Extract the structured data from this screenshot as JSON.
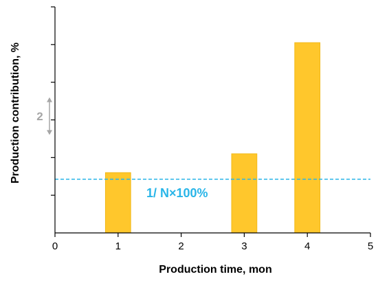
{
  "chart_data": {
    "type": "bar",
    "xlabel": "Production time, mon",
    "ylabel": "Production contribution, %",
    "xlim": [
      0,
      5
    ],
    "ylim": [
      0,
      12
    ],
    "x_ticks": [
      "0",
      "1",
      "2",
      "3",
      "4",
      "5"
    ],
    "y_tick_count": 6,
    "y_tick_step": 2,
    "y_labels_shown": false,
    "bars": [
      {
        "x": 1,
        "value": 3.2
      },
      {
        "x": 3,
        "value": 4.2
      },
      {
        "x": 4,
        "value": 10.1
      }
    ],
    "bar_width": 0.4,
    "bar_color": "#FFC72C",
    "bar_edge_color": "#F2B818",
    "reference_line": {
      "value": 2.85,
      "label": "1/ N×100%",
      "color": "#29B5E8",
      "style": "dashed"
    },
    "scale_marker": {
      "label": "2",
      "span": 2,
      "from": 5.2,
      "color": "#A6A6A6"
    },
    "grid": false
  }
}
